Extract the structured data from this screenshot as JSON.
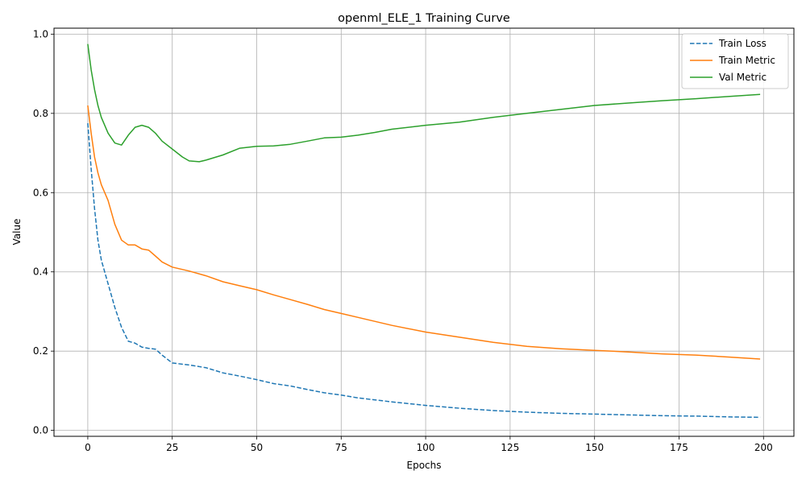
{
  "chart_data": {
    "type": "line",
    "title": "openml_ELE_1 Training Curve",
    "xlabel": "Epochs",
    "ylabel": "Value",
    "xlim": [
      -10,
      209
    ],
    "ylim": [
      -0.015,
      1.015
    ],
    "xticks": [
      0,
      25,
      50,
      75,
      100,
      125,
      150,
      175,
      200
    ],
    "yticks": [
      0.0,
      0.2,
      0.4,
      0.6,
      0.8,
      1.0
    ],
    "xtick_labels": [
      "0",
      "25",
      "50",
      "75",
      "100",
      "125",
      "150",
      "175",
      "200"
    ],
    "ytick_labels": [
      "0.0",
      "0.2",
      "0.4",
      "0.6",
      "0.8",
      "1.0"
    ],
    "grid": true,
    "legend_position": "top-right",
    "series": [
      {
        "name": "Train Loss",
        "color": "#1f77b4",
        "dash": "dashed",
        "x": [
          0,
          1,
          2,
          3,
          4,
          6,
          8,
          10,
          12,
          14,
          16,
          18,
          20,
          22,
          25,
          30,
          35,
          40,
          45,
          50,
          55,
          60,
          65,
          70,
          75,
          80,
          90,
          100,
          110,
          120,
          130,
          140,
          150,
          160,
          170,
          180,
          190,
          199
        ],
        "y": [
          0.775,
          0.66,
          0.56,
          0.48,
          0.43,
          0.37,
          0.31,
          0.26,
          0.225,
          0.22,
          0.21,
          0.207,
          0.205,
          0.19,
          0.17,
          0.165,
          0.158,
          0.145,
          0.137,
          0.128,
          0.118,
          0.112,
          0.103,
          0.095,
          0.089,
          0.082,
          0.072,
          0.063,
          0.056,
          0.05,
          0.046,
          0.043,
          0.041,
          0.039,
          0.037,
          0.036,
          0.034,
          0.033
        ]
      },
      {
        "name": "Train Metric",
        "color": "#ff7f0e",
        "dash": "solid",
        "x": [
          0,
          1,
          2,
          3,
          4,
          6,
          8,
          10,
          12,
          14,
          16,
          18,
          20,
          22,
          25,
          30,
          35,
          40,
          45,
          50,
          55,
          60,
          65,
          70,
          75,
          80,
          90,
          100,
          110,
          120,
          130,
          140,
          150,
          160,
          170,
          180,
          190,
          199
        ],
        "y": [
          0.82,
          0.75,
          0.69,
          0.65,
          0.62,
          0.58,
          0.52,
          0.48,
          0.468,
          0.468,
          0.458,
          0.455,
          0.44,
          0.425,
          0.412,
          0.402,
          0.39,
          0.375,
          0.365,
          0.355,
          0.342,
          0.33,
          0.318,
          0.305,
          0.295,
          0.285,
          0.265,
          0.248,
          0.235,
          0.222,
          0.212,
          0.206,
          0.202,
          0.198,
          0.193,
          0.19,
          0.185,
          0.18
        ]
      },
      {
        "name": "Val Metric",
        "color": "#2ca02c",
        "dash": "solid",
        "x": [
          0,
          1,
          2,
          3,
          4,
          6,
          8,
          10,
          12,
          14,
          16,
          18,
          20,
          22,
          25,
          28,
          30,
          33,
          35,
          40,
          45,
          50,
          55,
          60,
          65,
          70,
          75,
          80,
          85,
          90,
          100,
          110,
          120,
          130,
          140,
          150,
          160,
          170,
          180,
          190,
          199
        ],
        "y": [
          0.975,
          0.91,
          0.86,
          0.82,
          0.79,
          0.75,
          0.725,
          0.72,
          0.745,
          0.765,
          0.77,
          0.765,
          0.75,
          0.73,
          0.71,
          0.69,
          0.68,
          0.678,
          0.682,
          0.695,
          0.712,
          0.717,
          0.718,
          0.722,
          0.73,
          0.738,
          0.74,
          0.745,
          0.752,
          0.76,
          0.77,
          0.778,
          0.79,
          0.8,
          0.81,
          0.82,
          0.826,
          0.832,
          0.837,
          0.843,
          0.848
        ]
      }
    ]
  }
}
